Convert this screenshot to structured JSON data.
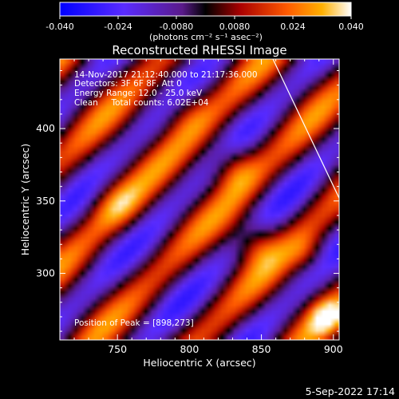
{
  "colorbar": {
    "min": -0.04,
    "max": 0.04,
    "ticks": [
      "-0.040",
      "-0.024",
      "-0.0080",
      "0.0080",
      "0.024",
      "0.040"
    ],
    "unit_label": "(photons cm⁻² s⁻¹ asec⁻²)"
  },
  "title": "Reconstructed RHESSI Image",
  "annotations": [
    "14-Nov-2017 21:12:40.000 to 21:17:36.000",
    "Detectors: 3F 6F 8F, Att 0",
    "Energy Range: 12.0 - 25.0 keV",
    "Clean     Total counts: 6.02E+04"
  ],
  "peak_label": "Position of Peak = [898,273]",
  "footer_date": "5-Sep-2022 17:14",
  "chart_data": {
    "type": "heatmap",
    "title": "Reconstructed RHESSI Image",
    "xlabel": "Heliocentric X (arcsec)",
    "ylabel": "Heliocentric Y (arcsec)",
    "xlim": [
      710,
      904
    ],
    "ylim": [
      254,
      448
    ],
    "xticks": [
      750,
      800,
      850,
      900
    ],
    "yticks": [
      300,
      350,
      400
    ],
    "colorbar_range": [
      -0.04,
      0.04
    ],
    "peak_position": [
      898,
      273
    ],
    "limb_line": [
      [
        858,
        448
      ],
      [
        904,
        352
      ]
    ]
  }
}
